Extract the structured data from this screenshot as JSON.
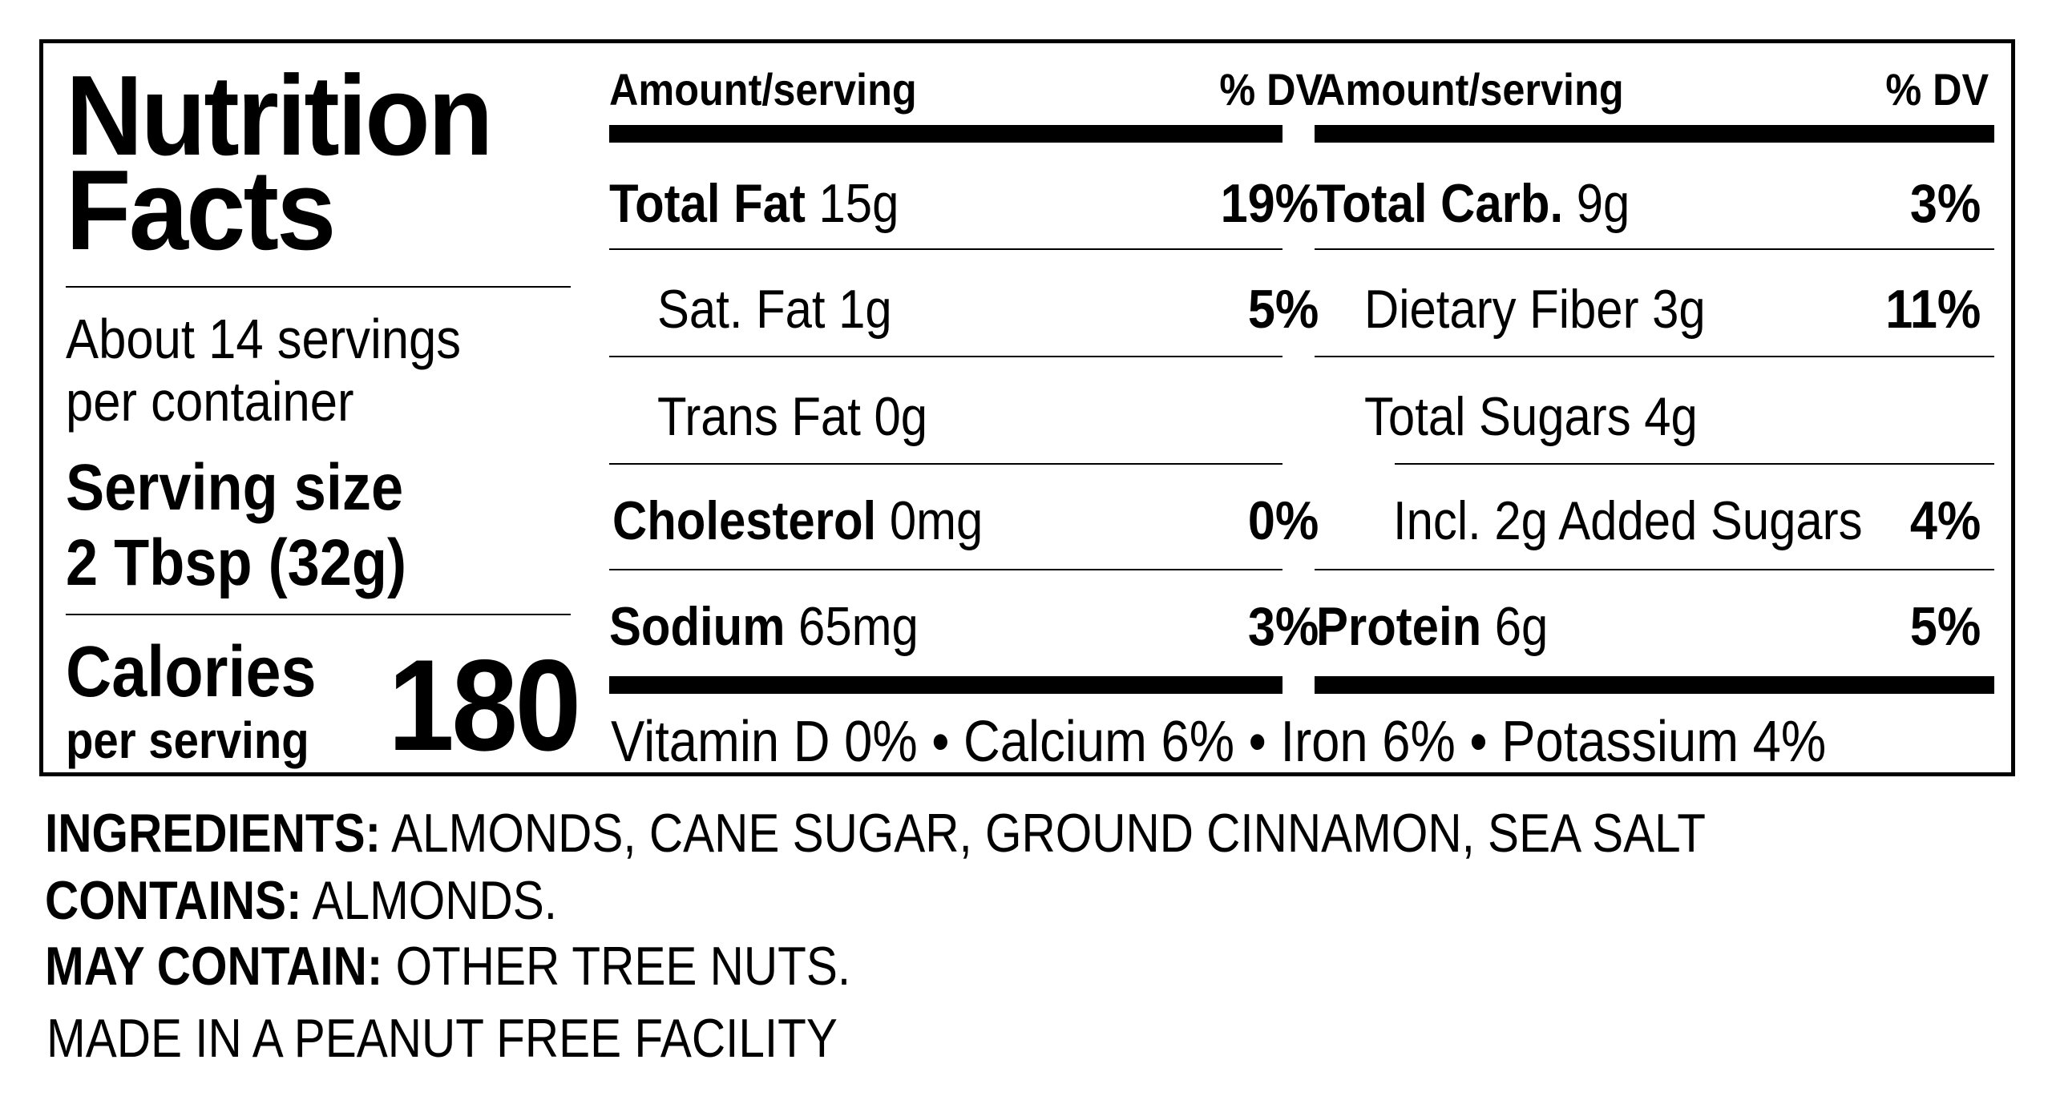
{
  "label": {
    "title_line1": "Nutrition",
    "title_line2": "Facts",
    "servings_line1": "About 14 servings",
    "servings_line2": "per container",
    "serving_size_label": "Serving size",
    "serving_size_value": "2 Tbsp (32g)",
    "calories_label": "Calories",
    "calories_sublabel": "per serving",
    "calories_value": "180"
  },
  "left_table": {
    "header_amount": "Amount/serving",
    "header_dv": "% DV",
    "rows": [
      {
        "name": "Total Fat",
        "amount": "15g",
        "dv": "19%"
      },
      {
        "name": "Sat. Fat 1g",
        "amount": "",
        "dv": "5%"
      },
      {
        "name": "Trans Fat 0g",
        "amount": "",
        "dv": ""
      },
      {
        "name": "Cholesterol",
        "amount": "0mg",
        "dv": "0%"
      },
      {
        "name": "Sodium",
        "amount": "65mg",
        "dv": "3%"
      }
    ]
  },
  "right_table": {
    "header_amount": "Amount/serving",
    "header_dv": "% DV",
    "rows": [
      {
        "name": "Total Carb.",
        "amount": "9g",
        "dv": "3%"
      },
      {
        "name": "Dietary Fiber 3g",
        "amount": "",
        "dv": "11%"
      },
      {
        "name": "Total Sugars 4g",
        "amount": "",
        "dv": ""
      },
      {
        "name": "Incl. 2g Added Sugars",
        "amount": "",
        "dv": "4%"
      },
      {
        "name": "Protein",
        "amount": "6g",
        "dv": "5%"
      }
    ]
  },
  "vitamins": "Vitamin D 0% • Calcium 6% • Iron 6% • Potassium 4%",
  "ingredients": {
    "ingredients_label": "INGREDIENTS:",
    "ingredients_value": "ALMONDS, CANE SUGAR, GROUND CINNAMON, SEA SALT",
    "contains_label": "CONTAINS:",
    "contains_value": "ALMONDS.",
    "may_contain_label": "MAY CONTAIN:",
    "may_contain_value": "OTHER TREE NUTS.",
    "facility": "MADE IN A PEANUT FREE FACILITY"
  }
}
